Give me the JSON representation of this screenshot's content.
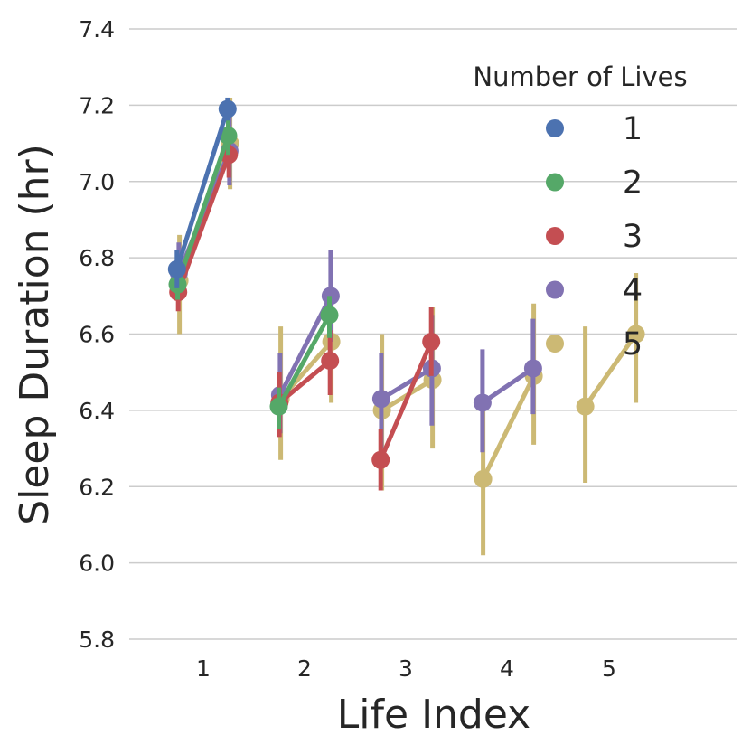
{
  "chart_data": {
    "type": "line",
    "title": "",
    "xlabel": "Life Index",
    "ylabel": "Sleep Duration (hr)",
    "ylim": [
      5.8,
      7.4
    ],
    "yticks": [
      "5.8",
      "6.0",
      "6.2",
      "6.4",
      "6.6",
      "6.8",
      "7.0",
      "7.2",
      "7.4"
    ],
    "categories": [
      "1",
      "2",
      "3",
      "4",
      "5"
    ],
    "grid": "horizontal",
    "legend": {
      "title": "Number of Lives",
      "position": "top-right"
    },
    "series": [
      {
        "name": "1",
        "color": "#4c72b0",
        "values": [
          {
            "x": 1,
            "y": [
              6.77,
              7.19
            ],
            "err": [
              [
                6.72,
                6.82
              ],
              [
                7.16,
                7.22
              ]
            ]
          }
        ]
      },
      {
        "name": "2",
        "color": "#55a868",
        "values": [
          {
            "x": 1,
            "y": [
              6.73,
              7.12
            ],
            "err": [
              [
                6.69,
                6.78
              ],
              [
                7.07,
                7.17
              ]
            ]
          },
          {
            "x": 2,
            "y": [
              6.41,
              6.65
            ],
            "err": [
              [
                6.35,
                6.46
              ],
              [
                6.59,
                6.7
              ]
            ]
          }
        ]
      },
      {
        "name": "3",
        "color": "#c44e52",
        "values": [
          {
            "x": 1,
            "y": [
              6.71,
              7.07
            ],
            "err": [
              [
                6.66,
                6.77
              ],
              [
                7.01,
                7.13
              ]
            ]
          },
          {
            "x": 2,
            "y": [
              6.42,
              6.53
            ],
            "err": [
              [
                6.33,
                6.5
              ],
              [
                6.44,
                6.61
              ]
            ]
          },
          {
            "x": 3,
            "y": [
              6.27,
              6.58
            ],
            "err": [
              [
                6.19,
                6.35
              ],
              [
                6.49,
                6.67
              ]
            ]
          }
        ]
      },
      {
        "name": "4",
        "color": "#8172b2",
        "values": [
          {
            "x": 1,
            "y": [
              6.76,
              7.08
            ],
            "err": [
              [
                6.69,
                6.84
              ],
              [
                6.99,
                7.17
              ]
            ]
          },
          {
            "x": 2,
            "y": [
              6.44,
              6.7
            ],
            "err": [
              [
                6.34,
                6.55
              ],
              [
                6.58,
                6.82
              ]
            ]
          },
          {
            "x": 3,
            "y": [
              6.43,
              6.51
            ],
            "err": [
              [
                6.3,
                6.55
              ],
              [
                6.36,
                6.65
              ]
            ]
          },
          {
            "x": 4,
            "y": [
              6.42,
              6.51
            ],
            "err": [
              [
                6.29,
                6.56
              ],
              [
                6.39,
                6.64
              ]
            ]
          }
        ]
      },
      {
        "name": "5",
        "color": "#ccb974",
        "values": [
          {
            "x": 1,
            "y": [
              6.74,
              7.1
            ],
            "err": [
              [
                6.6,
                6.86
              ],
              [
                6.98,
                7.22
              ]
            ]
          },
          {
            "x": 2,
            "y": [
              6.43,
              6.58
            ],
            "err": [
              [
                6.27,
                6.62
              ],
              [
                6.42,
                6.7
              ]
            ]
          },
          {
            "x": 3,
            "y": [
              6.4,
              6.48
            ],
            "err": [
              [
                6.19,
                6.6
              ],
              [
                6.3,
                6.67
              ]
            ]
          },
          {
            "x": 4,
            "y": [
              6.22,
              6.49
            ],
            "err": [
              [
                6.02,
                6.42
              ],
              [
                6.31,
                6.68
              ]
            ]
          },
          {
            "x": 5,
            "y": [
              6.41,
              6.6
            ],
            "err": [
              [
                6.21,
                6.62
              ],
              [
                6.42,
                6.76
              ]
            ]
          }
        ]
      }
    ]
  }
}
